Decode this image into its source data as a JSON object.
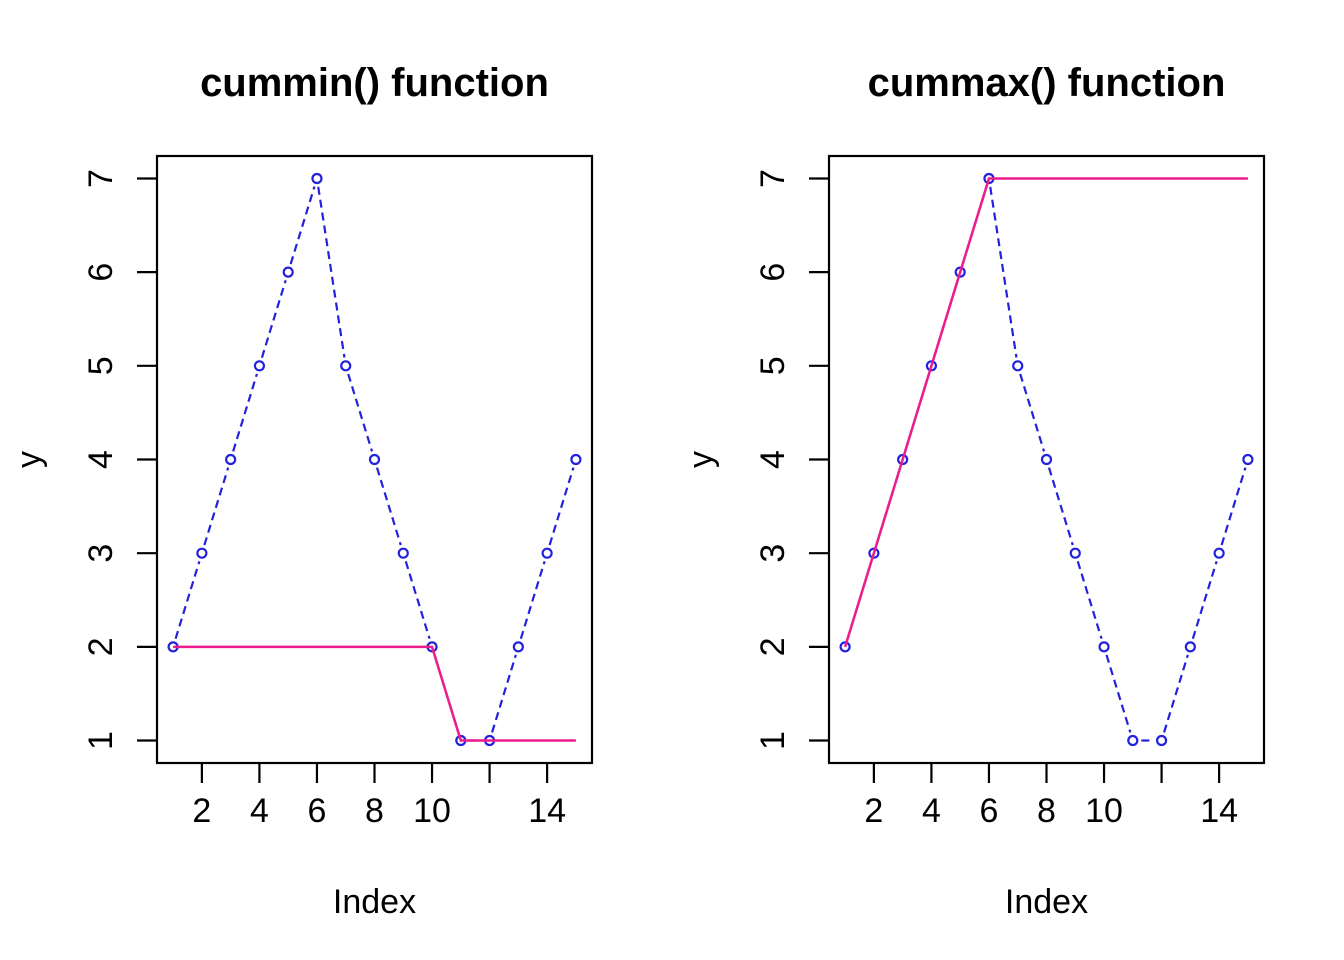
{
  "figure": {
    "background": "#FFFFFF",
    "panel_count": 2
  },
  "colors": {
    "data_line": "#2222DD",
    "cumulative_line": "#ED1C8C",
    "axis": "#000000",
    "text": "#000000"
  },
  "chart_data": [
    {
      "type": "line",
      "title": "cummin() function",
      "xlabel": "Index",
      "ylabel": "y",
      "x": [
        1,
        2,
        3,
        4,
        5,
        6,
        7,
        8,
        9,
        10,
        11,
        12,
        13,
        14,
        15
      ],
      "series": [
        {
          "name": "y",
          "style": "dashed",
          "marker": "open-circle",
          "color_key": "data_line",
          "values": [
            2,
            3,
            4,
            5,
            6,
            7,
            5,
            4,
            3,
            2,
            1,
            1,
            2,
            3,
            4
          ]
        },
        {
          "name": "cummin(y)",
          "style": "solid",
          "marker": "none",
          "color_key": "cumulative_line",
          "values": [
            2,
            2,
            2,
            2,
            2,
            2,
            2,
            2,
            2,
            2,
            1,
            1,
            1,
            1,
            1
          ]
        }
      ],
      "xlim": [
        1,
        15
      ],
      "ylim": [
        1,
        7
      ],
      "grid": false,
      "legend": null,
      "x_ticks": [
        {
          "value": 2,
          "label": "2"
        },
        {
          "value": 4,
          "label": "4"
        },
        {
          "value": 6,
          "label": "6"
        },
        {
          "value": 8,
          "label": "8"
        },
        {
          "value": 10,
          "label": "10"
        },
        {
          "value": 12,
          "label": ""
        },
        {
          "value": 14,
          "label": "14"
        }
      ],
      "y_ticks": [
        {
          "value": 1,
          "label": "1"
        },
        {
          "value": 2,
          "label": "2"
        },
        {
          "value": 3,
          "label": "3"
        },
        {
          "value": 4,
          "label": "4"
        },
        {
          "value": 5,
          "label": "5"
        },
        {
          "value": 6,
          "label": "6"
        },
        {
          "value": 7,
          "label": "7"
        }
      ]
    },
    {
      "type": "line",
      "title": "cummax() function",
      "xlabel": "Index",
      "ylabel": "y",
      "x": [
        1,
        2,
        3,
        4,
        5,
        6,
        7,
        8,
        9,
        10,
        11,
        12,
        13,
        14,
        15
      ],
      "series": [
        {
          "name": "y",
          "style": "dashed",
          "marker": "open-circle",
          "color_key": "data_line",
          "values": [
            2,
            3,
            4,
            5,
            6,
            7,
            5,
            4,
            3,
            2,
            1,
            1,
            2,
            3,
            4
          ]
        },
        {
          "name": "cummax(y)",
          "style": "solid",
          "marker": "none",
          "color_key": "cumulative_line",
          "values": [
            2,
            3,
            4,
            5,
            6,
            7,
            7,
            7,
            7,
            7,
            7,
            7,
            7,
            7,
            7
          ]
        }
      ],
      "xlim": [
        1,
        15
      ],
      "ylim": [
        1,
        7
      ],
      "grid": false,
      "legend": null,
      "x_ticks": [
        {
          "value": 2,
          "label": "2"
        },
        {
          "value": 4,
          "label": "4"
        },
        {
          "value": 6,
          "label": "6"
        },
        {
          "value": 8,
          "label": "8"
        },
        {
          "value": 10,
          "label": "10"
        },
        {
          "value": 12,
          "label": ""
        },
        {
          "value": 14,
          "label": "14"
        }
      ],
      "y_ticks": [
        {
          "value": 1,
          "label": "1"
        },
        {
          "value": 2,
          "label": "2"
        },
        {
          "value": 3,
          "label": "3"
        },
        {
          "value": 4,
          "label": "4"
        },
        {
          "value": 5,
          "label": "5"
        },
        {
          "value": 6,
          "label": "6"
        },
        {
          "value": 7,
          "label": "7"
        }
      ]
    }
  ]
}
